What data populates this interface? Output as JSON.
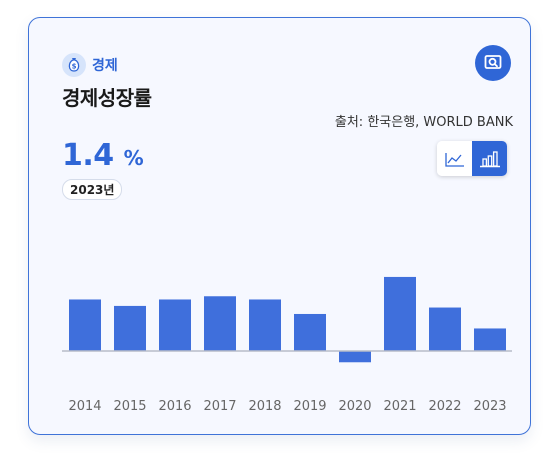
{
  "card": {
    "category_label": "경제",
    "title": "경제성장률",
    "source": "출처: 한국은행, WORLD BANK",
    "value": "1.4",
    "unit": "%",
    "year": "2023년"
  },
  "colors": {
    "accent": "#2f66d6",
    "bar": "#3f6fdc",
    "card_bg": "#f6f8ff",
    "border": "#3f73d8"
  },
  "icons": {
    "category": "money-bag-icon",
    "search": "search-zoom-icon",
    "line_toggle": "line-chart-icon",
    "bar_toggle": "bar-chart-icon"
  },
  "view_toggle": {
    "selected": "bar"
  },
  "chart_data": {
    "type": "bar",
    "categories": [
      "2014",
      "2015",
      "2016",
      "2017",
      "2018",
      "2019",
      "2020",
      "2021",
      "2022",
      "2023"
    ],
    "values": [
      3.2,
      2.8,
      3.2,
      3.4,
      3.2,
      2.3,
      -0.7,
      4.6,
      2.7,
      1.4
    ],
    "title": "",
    "xlabel": "",
    "ylabel": "",
    "ylim": [
      -1.0,
      6.4
    ],
    "grid": false,
    "legend": "none"
  }
}
